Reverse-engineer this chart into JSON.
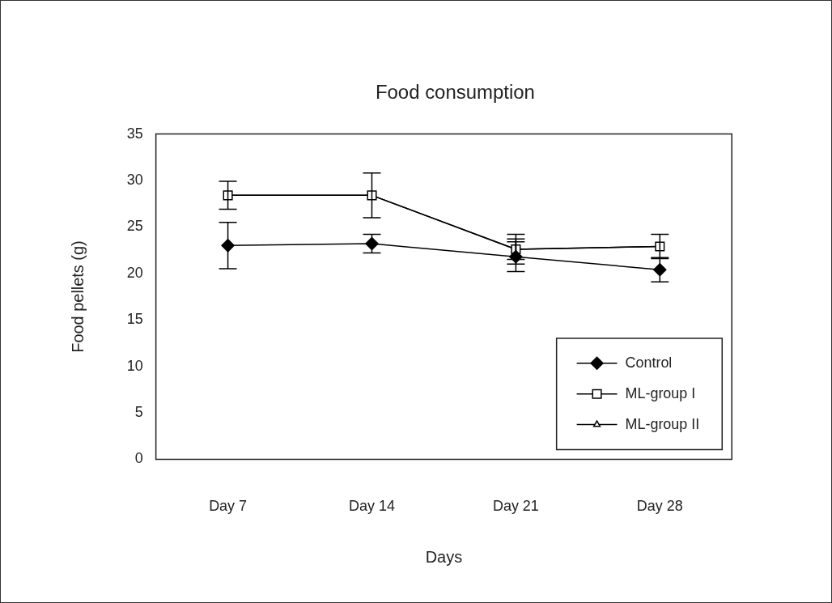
{
  "chart_data": {
    "type": "line",
    "title": "Food consumption",
    "xlabel": "Days",
    "ylabel": "Food pellets (g)",
    "categories": [
      "Day 7",
      "Day 14",
      "Day 21",
      "Day 28"
    ],
    "series": [
      {
        "name": "Control",
        "color": "#000000",
        "marker": "diamond",
        "values": [
          23.0,
          23.2,
          21.8,
          20.4
        ],
        "errors": [
          2.5,
          1.0,
          1.6,
          1.3
        ]
      },
      {
        "name": "ML-group I",
        "color": "#000000",
        "marker": "square",
        "values": [
          28.4,
          28.4,
          22.6,
          22.9
        ],
        "errors": [
          1.5,
          2.4,
          1.6,
          1.3
        ]
      },
      {
        "name": "ML-group II",
        "color": "#000000",
        "marker": "triangle",
        "values": [
          28.4,
          28.4,
          22.6,
          22.9
        ],
        "errors": [
          1.5,
          2.4,
          1.1,
          1.3
        ]
      }
    ],
    "ylim": [
      0,
      35
    ],
    "yticks": [
      0,
      5,
      10,
      15,
      20,
      25,
      30,
      35
    ],
    "grid": false,
    "legend": "bottom right",
    "line_style": "solid"
  }
}
